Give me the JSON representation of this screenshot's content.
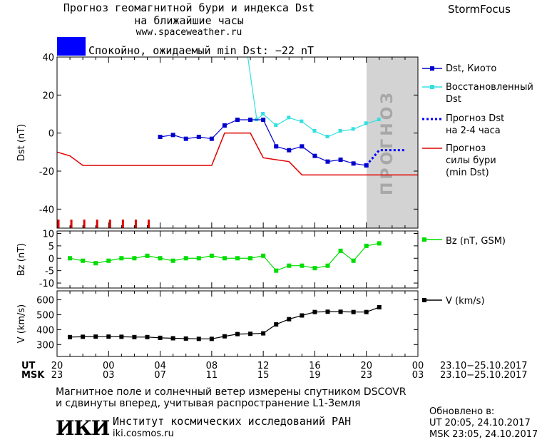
{
  "header": {
    "title_line1": "Прогноз геомагнитной бури и индекса Dst",
    "title_line2": "на ближайшие часы",
    "url": "www.spaceweather.ru",
    "brand": "StormFocus"
  },
  "status": {
    "color": "#0000ff",
    "text": "Спокойно, ожидаемый min Dst: −22 nT"
  },
  "forecast_label": "ПРОГНОЗ",
  "colors": {
    "dst_kyoto": "#0000cc",
    "dst_restored": "#33e0e0",
    "dst_forecast": "#0000ff",
    "storm_forecast": "#e00000",
    "bz": "#00dd00",
    "v": "#000000",
    "forecast_band": "#d3d3d3"
  },
  "legend": {
    "dst_kyoto": "Dst, Киото",
    "dst_restored_1": "Восстановленный",
    "dst_restored_2": "Dst",
    "dst_forecast_1": "Прогноз Dst",
    "dst_forecast_2": "на 2-4 часа",
    "storm_1": "Прогноз",
    "storm_2": "силы бури",
    "storm_3": "(min Dst)",
    "bz": "Bz (nT, GSM)",
    "v": "V (km/s)"
  },
  "chart_data": [
    {
      "type": "line",
      "ylabel": "Dst (nT)",
      "xlim": [
        20,
        48
      ],
      "ylim": [
        -50,
        40
      ],
      "yticks": [
        40,
        20,
        0,
        -20,
        -40
      ],
      "forecast_band": [
        44,
        48
      ],
      "series": [
        {
          "name": "Dst, Киото",
          "x": [
            28,
            29,
            30,
            31,
            32,
            33,
            34,
            35,
            36,
            37,
            38,
            39,
            40,
            41,
            42,
            43,
            44
          ],
          "y": [
            -2,
            -1,
            -3,
            -2,
            -3,
            4,
            7,
            7,
            7,
            -7,
            -9,
            -7,
            -12,
            -15,
            -14,
            -16,
            -17
          ]
        },
        {
          "name": "Восстановленный Dst",
          "x": [
            34.8,
            35.5,
            36,
            37,
            38,
            39,
            40,
            41,
            42,
            43,
            44,
            45
          ],
          "y": [
            40,
            7,
            10,
            4,
            8,
            6,
            1,
            -2,
            1,
            2,
            5,
            7
          ]
        },
        {
          "name": "Прогноз Dst на 2-4 часа",
          "x": [
            44,
            45,
            46,
            47
          ],
          "y": [
            -17,
            -9,
            -9,
            -9
          ]
        },
        {
          "name": "Прогноз силы бури (min Dst)",
          "x": [
            20,
            21,
            22,
            32,
            33,
            35,
            36,
            38,
            39,
            40,
            48
          ],
          "y": [
            -10,
            -12,
            -17,
            -17,
            0,
            0,
            -13,
            -15,
            -22,
            -22,
            -22
          ]
        }
      ],
      "quiet_markers_x": [
        20,
        21,
        22,
        23,
        24,
        25,
        26,
        27
      ]
    },
    {
      "type": "line",
      "ylabel": "Bz (nT)",
      "xlim": [
        20,
        48
      ],
      "ylim": [
        -12,
        11
      ],
      "yticks": [
        10,
        5,
        0,
        -5,
        -10
      ],
      "series": [
        {
          "name": "Bz (nT, GSM)",
          "x": [
            21,
            22,
            23,
            24,
            25,
            26,
            27,
            28,
            29,
            30,
            31,
            32,
            33,
            34,
            35,
            36,
            37,
            38,
            39,
            40,
            41,
            42,
            43,
            44,
            45
          ],
          "y": [
            0,
            -1,
            -2,
            -1,
            0,
            0,
            1,
            0,
            -1,
            0,
            0,
            1,
            0,
            0,
            0,
            1,
            -5,
            -3,
            -3,
            -4,
            -3,
            3,
            -1,
            5,
            6
          ]
        }
      ]
    },
    {
      "type": "line",
      "ylabel": "V (km/s)",
      "xlim": [
        20,
        48
      ],
      "ylim": [
        220,
        660
      ],
      "yticks": [
        600,
        500,
        400,
        300
      ],
      "series": [
        {
          "name": "V (km/s)",
          "x": [
            21,
            22,
            23,
            24,
            25,
            26,
            27,
            28,
            29,
            30,
            31,
            32,
            33,
            34,
            35,
            36,
            37,
            38,
            39,
            40,
            41,
            42,
            43,
            44,
            45
          ],
          "y": [
            350,
            352,
            353,
            353,
            352,
            350,
            350,
            345,
            342,
            340,
            338,
            338,
            355,
            370,
            372,
            375,
            435,
            470,
            495,
            518,
            520,
            520,
            518,
            518,
            550
          ]
        }
      ]
    }
  ],
  "axis": {
    "ut_label": "UT",
    "msk_label": "MSK",
    "ut_ticks": [
      "20",
      "00",
      "04",
      "08",
      "12",
      "16",
      "20",
      "00"
    ],
    "msk_ticks": [
      "23",
      "03",
      "07",
      "11",
      "15",
      "19",
      "23",
      "03"
    ],
    "ut_range": "23.10−25.10.2017",
    "msk_range": "23.10−25.10.2017"
  },
  "footer": {
    "line1": "Магнитное поле и солнечный ветер измерены спутником DSCOVR",
    "line2": "и сдвинуты вперед, учитывая распространение L1-Земля",
    "logo": "ИКИ",
    "institute": "Институт космических исследований РАН",
    "site": "iki.cosmos.ru",
    "updated_label": "Обновлено в:",
    "updated_ut": "UT  20:05, 24.10.2017",
    "updated_msk": "MSK 23:05, 24.10.2017"
  }
}
